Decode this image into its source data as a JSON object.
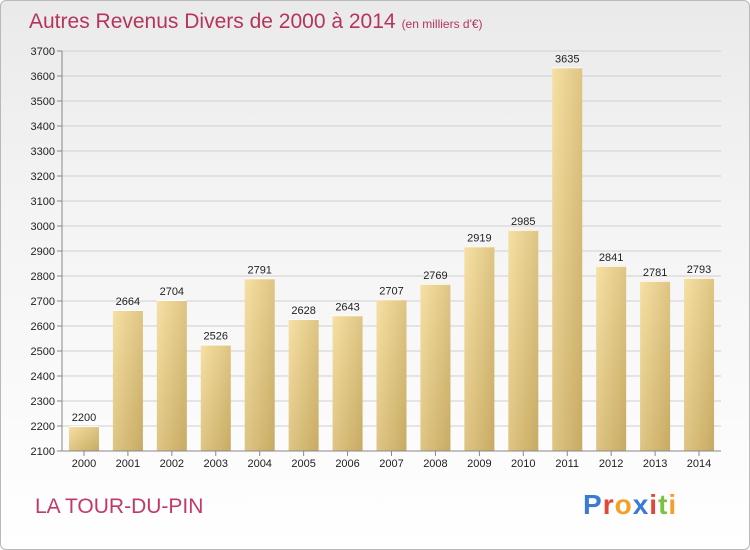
{
  "header": {
    "title": "Autres Revenus Divers de 2000 à 2014",
    "unit_note": "(en milliers d'€)"
  },
  "footer": {
    "city": "LA TOUR-DU-PIN",
    "brand": "Proxiti",
    "brand_colors": [
      "#3a7bd5",
      "#e0483a",
      "#f2a126",
      "#3a7bd5",
      "#e0483a",
      "#7cc142",
      "#f2a126"
    ]
  },
  "colors": {
    "bar_light": "#f4dc9c",
    "bar_dark": "#c9ad68",
    "grid": "#cfcfcf",
    "title": "#b5345b"
  },
  "chart_data": {
    "type": "bar",
    "title": "Autres Revenus Divers de 2000 à 2014",
    "xlabel": "",
    "ylabel": "",
    "categories": [
      "2000",
      "2001",
      "2002",
      "2003",
      "2004",
      "2005",
      "2006",
      "2007",
      "2008",
      "2009",
      "2010",
      "2011",
      "2012",
      "2013",
      "2014"
    ],
    "values": [
      2200,
      2664,
      2704,
      2526,
      2791,
      2628,
      2643,
      2707,
      2769,
      2919,
      2985,
      3635,
      2841,
      2781,
      2793
    ],
    "ylim": [
      2100,
      3700
    ],
    "yticks": [
      2100,
      2200,
      2300,
      2400,
      2500,
      2600,
      2700,
      2800,
      2900,
      3000,
      3100,
      3200,
      3300,
      3400,
      3500,
      3600,
      3700
    ],
    "grid": true,
    "data_labels": true
  }
}
